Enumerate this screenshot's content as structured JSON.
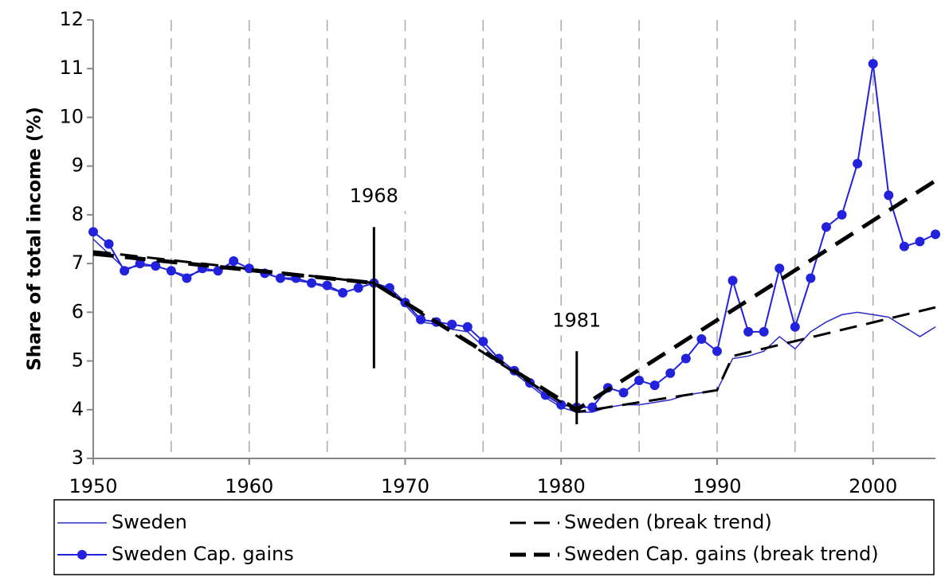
{
  "chart_data": {
    "type": "line",
    "y_label": "Share of total income (%)",
    "x": [
      1950,
      1951,
      1952,
      1953,
      1954,
      1955,
      1956,
      1957,
      1958,
      1959,
      1960,
      1961,
      1962,
      1963,
      1964,
      1965,
      1966,
      1967,
      1968,
      1969,
      1970,
      1971,
      1972,
      1973,
      1974,
      1975,
      1976,
      1977,
      1978,
      1979,
      1980,
      1981,
      1982,
      1983,
      1984,
      1985,
      1986,
      1987,
      1988,
      1989,
      1990,
      1991,
      1992,
      1993,
      1994,
      1995,
      1996,
      1997,
      1998,
      1999,
      2000,
      2001,
      2002,
      2003,
      2004
    ],
    "xlim": [
      1950,
      2004
    ],
    "xticks": [
      1950,
      1960,
      1970,
      1980,
      1990,
      2000
    ],
    "xgrid": [
      1955,
      1960,
      1965,
      1970,
      1975,
      1980,
      1985,
      1990,
      1995,
      2000
    ],
    "ylim": [
      3,
      12
    ],
    "yticks": [
      3,
      4,
      5,
      6,
      7,
      8,
      9,
      10,
      11,
      12
    ],
    "series": [
      {
        "name": "Sweden",
        "color": "#2b2bc8",
        "style": "solid",
        "width": 1.5,
        "values": [
          7.5,
          7.2,
          6.9,
          6.95,
          6.95,
          6.85,
          6.75,
          6.85,
          6.85,
          6.95,
          6.85,
          6.8,
          6.7,
          6.65,
          6.6,
          6.5,
          6.4,
          6.5,
          6.6,
          6.45,
          6.15,
          5.8,
          5.75,
          5.65,
          5.6,
          5.3,
          5.0,
          4.75,
          4.5,
          4.25,
          4.05,
          3.95,
          3.95,
          4.05,
          4.1,
          4.1,
          4.15,
          4.2,
          4.3,
          4.35,
          4.4,
          5.05,
          5.1,
          5.2,
          5.5,
          5.25,
          5.6,
          5.8,
          5.95,
          6.0,
          5.95,
          5.9,
          5.7,
          5.5,
          5.7
        ]
      },
      {
        "name": "Sweden Cap. gains",
        "color": "#2222dd",
        "style": "solid",
        "width": 2,
        "marker": "circle",
        "values": [
          7.65,
          7.4,
          6.85,
          7.0,
          6.95,
          6.85,
          6.7,
          6.9,
          6.85,
          7.05,
          6.9,
          6.8,
          6.7,
          6.7,
          6.6,
          6.55,
          6.4,
          6.5,
          6.6,
          6.5,
          6.2,
          5.85,
          5.8,
          5.75,
          5.7,
          5.4,
          5.05,
          4.8,
          4.55,
          4.3,
          4.1,
          4.05,
          4.05,
          4.45,
          4.35,
          4.6,
          4.5,
          4.75,
          5.05,
          5.45,
          5.2,
          6.65,
          5.6,
          5.6,
          6.9,
          5.7,
          6.7,
          7.75,
          8.0,
          9.05,
          11.1,
          8.4,
          7.35,
          7.45,
          7.6
        ]
      },
      {
        "name": "Sweden (break trend)",
        "color": "#000000",
        "style": "dashed",
        "width": 3,
        "x": [
          1950,
          1968,
          1981,
          1990,
          1991,
          2004
        ],
        "values": [
          7.25,
          6.6,
          3.95,
          4.4,
          5.1,
          6.1
        ]
      },
      {
        "name": "Sweden Cap. gains (break trend)",
        "color": "#000000",
        "style": "dashed",
        "width": 5,
        "x": [
          1950,
          1968,
          1981,
          2004
        ],
        "values": [
          7.2,
          6.6,
          4.0,
          8.7
        ]
      }
    ],
    "annotations": [
      {
        "text": "1968",
        "x": 1968,
        "y_range": [
          4.85,
          7.75
        ]
      },
      {
        "text": "1981",
        "x": 1981,
        "y_range": [
          3.7,
          5.2
        ]
      }
    ]
  }
}
